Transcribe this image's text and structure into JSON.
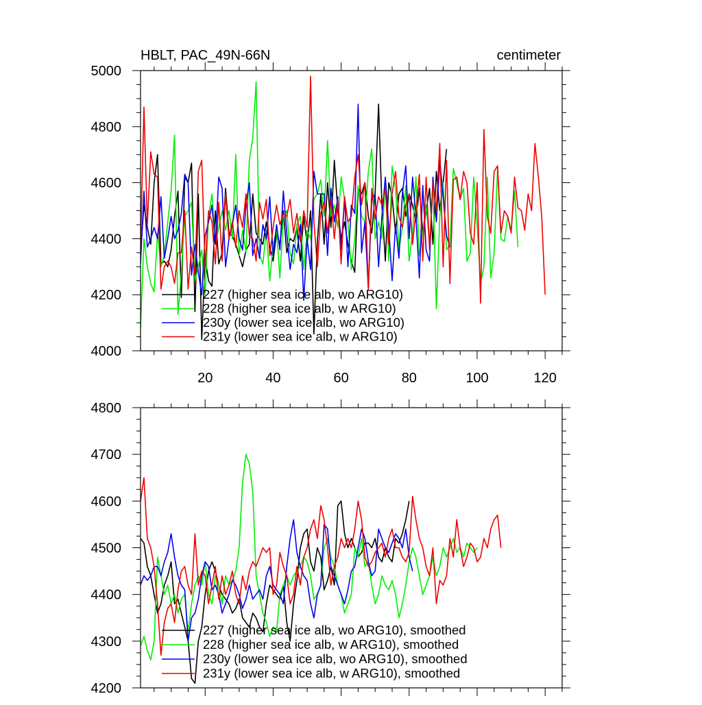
{
  "chart_data": [
    {
      "type": "line",
      "title": "HBLT, PAC_49N-66N",
      "units": "centimeter",
      "xlim": [
        1,
        125
      ],
      "ylim": [
        4000,
        5000
      ],
      "xticks": [
        20,
        40,
        60,
        80,
        100,
        120
      ],
      "yticks": [
        4000,
        4200,
        4400,
        4600,
        4800,
        5000
      ],
      "series": [
        {
          "name": "227 (higher sea ice alb, wo ARG10)",
          "color": "#000000",
          "x_start": 1,
          "values": [
            4350,
            4520,
            4440,
            4380,
            4600,
            4700,
            4310,
            4320,
            4300,
            4360,
            4480,
            4570,
            4190,
            4620,
            4600,
            4670,
            4140,
            4560,
            4040,
            4330,
            4250,
            4230,
            4500,
            4310,
            4350,
            4580,
            4420,
            4410,
            4380,
            4340,
            4300,
            4360,
            4380,
            4560,
            4420,
            4400,
            4380,
            4460,
            4370,
            4320,
            4420,
            4380,
            4500,
            4350,
            4400,
            4390,
            4440,
            4320,
            4480,
            4380,
            4500,
            4060,
            4390,
            4560,
            4380,
            4600,
            4440,
            4680,
            4500,
            4400,
            4460,
            4380,
            4320,
            4280,
            4580,
            4560,
            4600,
            4480,
            4420,
            4560,
            4880,
            4520,
            4320,
            4600,
            4550,
            4420,
            4560,
            4580,
            4480,
            4560,
            4520,
            4460,
            4580,
            4420,
            4500,
            4580,
            4380,
            4640,
            4500,
            4600,
            4720
          ]
        },
        {
          "name": "228 (higher sea ice alb, w ARG10)",
          "color": "#00ee00",
          "x_start": 1,
          "values": [
            4080,
            4400,
            4300,
            4240,
            4210,
            4420,
            4300,
            4340,
            4460,
            4570,
            4770,
            4130,
            4280,
            4480,
            4500,
            4530,
            4250,
            4300,
            4360,
            4200,
            4480,
            4560,
            4380,
            4440,
            4500,
            4430,
            4500,
            4400,
            4700,
            4340,
            4430,
            4350,
            4680,
            4760,
            4960,
            4340,
            4310,
            4430,
            4250,
            4380,
            4430,
            4260,
            4480,
            4500,
            4350,
            4310,
            4450,
            4480,
            4290,
            4430,
            4400,
            4540,
            4560,
            4610,
            4480,
            4750,
            4480,
            4520,
            4440,
            4620,
            4540,
            4460,
            4290,
            4400,
            4590,
            4480,
            4460,
            4640,
            4720,
            4400,
            4460,
            4400,
            4600,
            4320,
            4660,
            4580,
            4360,
            4440,
            4590,
            4320,
            4420,
            4620,
            4340,
            4420,
            4520,
            4380,
            4600,
            4150,
            4480,
            4600,
            4360,
            4380,
            4650,
            4600,
            4540,
            4580,
            4320,
            4350,
            4620,
            4450,
            4240,
            4300,
            4620,
            4260,
            4350,
            4650,
            4400,
            4390,
            4480,
            4430,
            4570,
            4370
          ]
        },
        {
          "name": "230y (lower sea ice alb, wo ARG10)",
          "color": "#0000ee",
          "x_start": 1,
          "values": [
            4310,
            4570,
            4370,
            4400,
            4440,
            4400,
            4550,
            4330,
            4400,
            4480,
            4400,
            4430,
            4490,
            4630,
            4600,
            4270,
            4380,
            4280,
            4200,
            4410,
            4460,
            4520,
            4380,
            4620,
            4580,
            4300,
            4400,
            4450,
            4520,
            4400,
            4360,
            4520,
            4600,
            4340,
            4400,
            4330,
            4450,
            4400,
            4550,
            4340,
            4450,
            4360,
            4570,
            4420,
            4290,
            4380,
            4350,
            4450,
            4180,
            4400,
            4290,
            4640,
            4560,
            4560,
            4560,
            4340,
            4580,
            4460,
            4550,
            4360,
            4550,
            4300,
            4520,
            4490,
            4880,
            4350,
            4460,
            4220,
            4540,
            4560,
            4300,
            4480,
            4620,
            4440,
            4250,
            4450,
            4330,
            4560,
            4660,
            4400,
            4620,
            4480,
            4260,
            4590,
            4360,
            4320,
            4620,
            4460,
            4680,
            4550,
            4410,
            4370
          ]
        },
        {
          "name": "231y (lower sea ice alb, w ARG10)",
          "color": "#ee0000",
          "x_start": 1,
          "values": [
            4370,
            4870,
            4450,
            4710,
            4630,
            4620,
            4220,
            4300,
            4320,
            4300,
            4240,
            4350,
            4350,
            4500,
            4220,
            4370,
            4270,
            4640,
            4680,
            4300,
            4500,
            4460,
            4310,
            4530,
            4320,
            4560,
            4400,
            4460,
            4370,
            4500,
            4440,
            4560,
            4410,
            4400,
            4320,
            4530,
            4470,
            4540,
            4340,
            4440,
            4520,
            4450,
            4490,
            4480,
            4540,
            4420,
            4490,
            4390,
            4500,
            4440,
            4980,
            4460,
            4300,
            4490,
            4530,
            4420,
            4540,
            4400,
            4540,
            4310,
            4550,
            4460,
            4480,
            4620,
            4700,
            4520,
            4600,
            4220,
            4580,
            4470,
            4550,
            4520,
            4580,
            4380,
            4560,
            4640,
            4480,
            4440,
            4520,
            4560,
            4380,
            4500,
            4630,
            4320,
            4620,
            4360,
            4600,
            4500,
            4740,
            4300,
            4680,
            4240,
            4610,
            4620,
            4540,
            4640,
            4600,
            4420,
            4380,
            4600,
            4170,
            4790,
            4480,
            4420,
            4640,
            4660,
            4420,
            4500,
            4480,
            4420,
            4620,
            4510,
            4500,
            4430,
            4560,
            4500,
            4740,
            4620,
            4480,
            4200
          ]
        }
      ],
      "legend_location": "lower-left"
    },
    {
      "type": "line",
      "title": "",
      "xlim": [
        1,
        125
      ],
      "ylim": [
        4200,
        4800
      ],
      "xticks": [
        20,
        40,
        60,
        80,
        100,
        120
      ],
      "yticks": [
        4200,
        4300,
        4400,
        4500,
        4600,
        4700,
        4800
      ],
      "series": [
        {
          "name": "227 (higher sea ice alb, wo ARG10), smoothed",
          "color": "#000000",
          "x_start": 1,
          "values": [
            4520,
            4510,
            4460,
            4440,
            4400,
            4360,
            4380,
            4420,
            4440,
            4470,
            4380,
            4390,
            4360,
            4330,
            4300,
            4220,
            4210,
            4300,
            4330,
            4400,
            4450,
            4470,
            4450,
            4420,
            4400,
            4390,
            4380,
            4360,
            4370,
            4390,
            4350,
            4340,
            4330,
            4360,
            4350,
            4330,
            4320,
            4380,
            4420,
            4410,
            4400,
            4390,
            4420,
            4340,
            4300,
            4380,
            4430,
            4500,
            4530,
            4540,
            4470,
            4450,
            4500,
            4480,
            4410,
            4430,
            4460,
            4420,
            4590,
            4600,
            4530,
            4500,
            4520,
            4500,
            4480,
            4490,
            4510,
            4510,
            4500,
            4520,
            4480,
            4470,
            4500,
            4480,
            4470,
            4520,
            4510,
            4530,
            4560,
            4600
          ]
        },
        {
          "name": "228 (higher sea ice alb, w ARG10), smoothed",
          "color": "#00ee00",
          "x_start": 1,
          "values": [
            4290,
            4310,
            4280,
            4260,
            4300,
            4480,
            4440,
            4400,
            4420,
            4380,
            4400,
            4360,
            4390,
            4400,
            4320,
            4380,
            4420,
            4440,
            4420,
            4470,
            4400,
            4380,
            4440,
            4420,
            4380,
            4440,
            4420,
            4430,
            4450,
            4500,
            4640,
            4700,
            4680,
            4620,
            4440,
            4400,
            4360,
            4340,
            4310,
            4330,
            4320,
            4400,
            4420,
            4440,
            4420,
            4440,
            4450,
            4460,
            4480,
            4470,
            4440,
            4390,
            4400,
            4420,
            4500,
            4520,
            4480,
            4460,
            4420,
            4400,
            4360,
            4380,
            4400,
            4500,
            4480,
            4520,
            4460,
            4470,
            4420,
            4380,
            4400,
            4440,
            4420,
            4410,
            4430,
            4400,
            4350,
            4380,
            4420,
            4470,
            4500,
            4480,
            4440,
            4400,
            4420,
            4440,
            4480,
            4440,
            4460,
            4500,
            4480,
            4500,
            4520,
            4490,
            4500,
            4480,
            4510,
            4500,
            4490,
            4500
          ]
        },
        {
          "name": "230y (lower sea ice alb, wo ARG10), smoothed",
          "color": "#0000ee",
          "x_start": 1,
          "values": [
            4420,
            4440,
            4430,
            4440,
            4460,
            4460,
            4440,
            4470,
            4490,
            4530,
            4480,
            4440,
            4420,
            4410,
            4300,
            4350,
            4360,
            4390,
            4440,
            4470,
            4460,
            4410,
            4420,
            4400,
            4360,
            4380,
            4400,
            4430,
            4420,
            4400,
            4370,
            4390,
            4420,
            4390,
            4400,
            4410,
            4390,
            4440,
            4460,
            4420,
            4410,
            4400,
            4380,
            4460,
            4520,
            4560,
            4490,
            4460,
            4440,
            4430,
            4380,
            4350,
            4400,
            4420,
            4550,
            4540,
            4460,
            4440,
            4420,
            4400,
            4380,
            4410,
            4450,
            4460,
            4500,
            4540,
            4520,
            4470,
            4440,
            4450,
            4540,
            4520,
            4500,
            4490,
            4510,
            4530,
            4520,
            4500,
            4540,
            4480,
            4450
          ]
        },
        {
          "name": "231y (lower sea ice alb, w ARG10), smoothed",
          "color": "#ee0000",
          "x_start": 1,
          "values": [
            4600,
            4650,
            4520,
            4500,
            4460,
            4380,
            4270,
            4340,
            4370,
            4380,
            4340,
            4410,
            4450,
            4460,
            4420,
            4400,
            4530,
            4420,
            4450,
            4440,
            4380,
            4420,
            4460,
            4390,
            4440,
            4400,
            4420,
            4450,
            4400,
            4380,
            4440,
            4410,
            4450,
            4470,
            4460,
            4480,
            4500,
            4490,
            4500,
            4400,
            4420,
            4490,
            4460,
            4440,
            4380,
            4400,
            4460,
            4420,
            4480,
            4500,
            4540,
            4560,
            4520,
            4590,
            4560,
            4500,
            4420,
            4460,
            4480,
            4520,
            4500,
            4520,
            4500,
            4540,
            4600,
            4560,
            4480,
            4460,
            4470,
            4490,
            4500,
            4510,
            4480,
            4520,
            4540,
            4500,
            4500,
            4480,
            4470,
            4490,
            4610,
            4560,
            4520,
            4500,
            4460,
            4440,
            4500,
            4380,
            4430,
            4420,
            4440,
            4520,
            4480,
            4560,
            4500,
            4460,
            4480,
            4510,
            4500,
            4470,
            4480,
            4520,
            4500,
            4540,
            4560,
            4570,
            4500
          ]
        }
      ],
      "legend_location": "lower-left"
    }
  ]
}
